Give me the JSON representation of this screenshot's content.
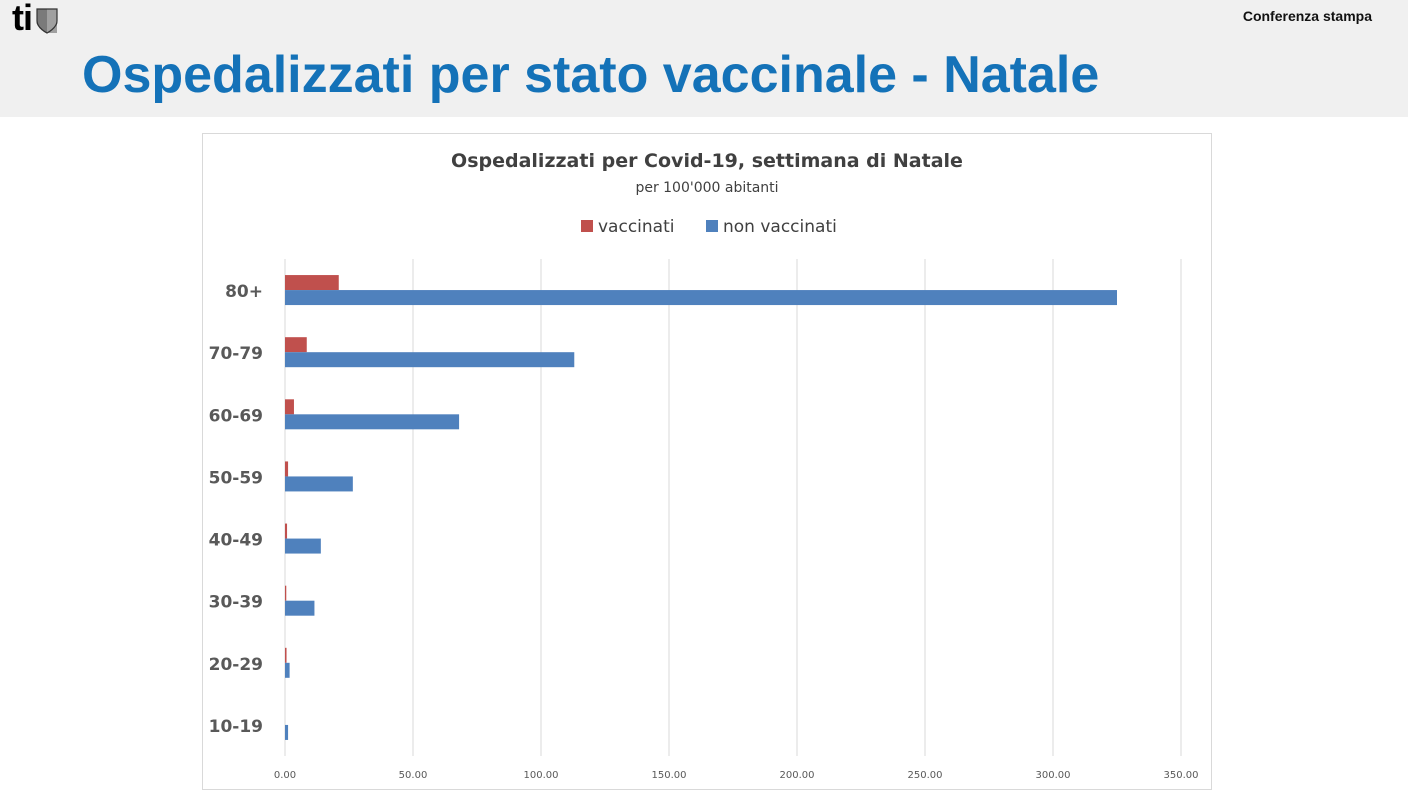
{
  "header": {
    "logo_text": "ti",
    "right_label": "Conferenza stampa",
    "slide_title": "Ospedalizzati per stato vaccinale - Natale"
  },
  "colors": {
    "title_blue": "#1472b8",
    "vaccinati": "#c0504d",
    "non_vaccinati": "#4f81bd"
  },
  "chart_data": {
    "type": "bar",
    "orientation": "horizontal",
    "title": "Ospedalizzati per Covid-19, settimana di Natale",
    "subtitle": "per 100'000 abitanti",
    "categories": [
      "80+",
      "70-79",
      "60-69",
      "50-59",
      "40-49",
      "30-39",
      "20-29",
      "10-19"
    ],
    "series": [
      {
        "name": "vaccinati",
        "color": "#c0504d",
        "values": [
          21,
          8.5,
          3.5,
          1.2,
          0.8,
          0.5,
          0.6,
          0
        ]
      },
      {
        "name": "non vaccinati",
        "color": "#4f81bd",
        "values": [
          325,
          113,
          68,
          26.5,
          14,
          11.5,
          1.8,
          1.2
        ]
      }
    ],
    "xlim": [
      0,
      350
    ],
    "xticks": [
      "0.00",
      "50.00",
      "100.00",
      "150.00",
      "200.00",
      "250.00",
      "300.00",
      "350.00"
    ],
    "grid": true,
    "legend_position": "top"
  }
}
